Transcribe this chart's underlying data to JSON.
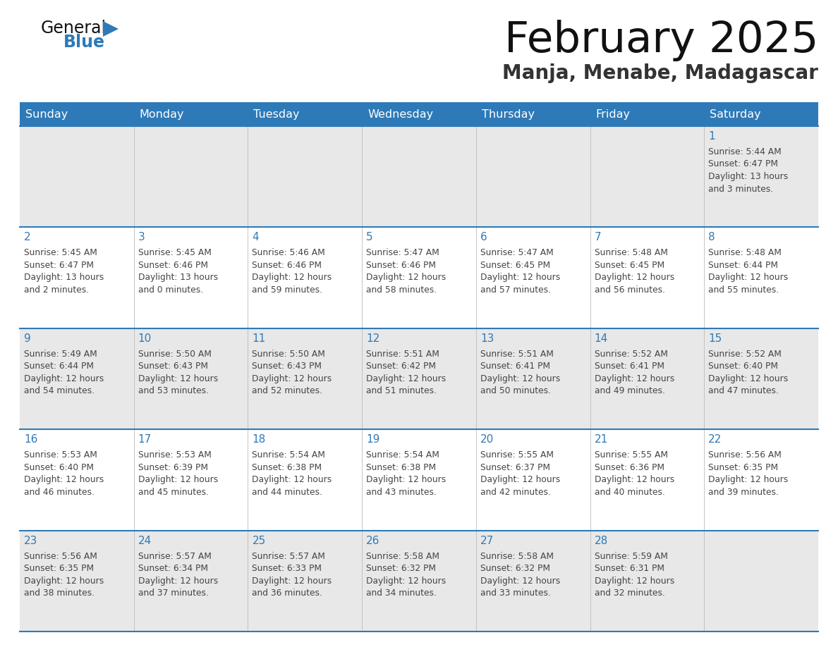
{
  "title": "February 2025",
  "subtitle": "Manja, Menabe, Madagascar",
  "header_bg": "#2E7AB8",
  "header_text_color": "#FFFFFF",
  "cell_bg_light": "#E8E8E8",
  "cell_bg_white": "#FFFFFF",
  "day_number_color": "#2E7AB8",
  "text_color": "#444444",
  "grid_line_color": "#2E7AB8",
  "days_of_week": [
    "Sunday",
    "Monday",
    "Tuesday",
    "Wednesday",
    "Thursday",
    "Friday",
    "Saturday"
  ],
  "calendar_data": [
    [
      null,
      null,
      null,
      null,
      null,
      null,
      {
        "day": 1,
        "sunrise": "5:44 AM",
        "sunset": "6:47 PM",
        "daylight": "13 hours and 3 minutes."
      }
    ],
    [
      {
        "day": 2,
        "sunrise": "5:45 AM",
        "sunset": "6:47 PM",
        "daylight": "13 hours and 2 minutes."
      },
      {
        "day": 3,
        "sunrise": "5:45 AM",
        "sunset": "6:46 PM",
        "daylight": "13 hours and 0 minutes."
      },
      {
        "day": 4,
        "sunrise": "5:46 AM",
        "sunset": "6:46 PM",
        "daylight": "12 hours and 59 minutes."
      },
      {
        "day": 5,
        "sunrise": "5:47 AM",
        "sunset": "6:46 PM",
        "daylight": "12 hours and 58 minutes."
      },
      {
        "day": 6,
        "sunrise": "5:47 AM",
        "sunset": "6:45 PM",
        "daylight": "12 hours and 57 minutes."
      },
      {
        "day": 7,
        "sunrise": "5:48 AM",
        "sunset": "6:45 PM",
        "daylight": "12 hours and 56 minutes."
      },
      {
        "day": 8,
        "sunrise": "5:48 AM",
        "sunset": "6:44 PM",
        "daylight": "12 hours and 55 minutes."
      }
    ],
    [
      {
        "day": 9,
        "sunrise": "5:49 AM",
        "sunset": "6:44 PM",
        "daylight": "12 hours and 54 minutes."
      },
      {
        "day": 10,
        "sunrise": "5:50 AM",
        "sunset": "6:43 PM",
        "daylight": "12 hours and 53 minutes."
      },
      {
        "day": 11,
        "sunrise": "5:50 AM",
        "sunset": "6:43 PM",
        "daylight": "12 hours and 52 minutes."
      },
      {
        "day": 12,
        "sunrise": "5:51 AM",
        "sunset": "6:42 PM",
        "daylight": "12 hours and 51 minutes."
      },
      {
        "day": 13,
        "sunrise": "5:51 AM",
        "sunset": "6:41 PM",
        "daylight": "12 hours and 50 minutes."
      },
      {
        "day": 14,
        "sunrise": "5:52 AM",
        "sunset": "6:41 PM",
        "daylight": "12 hours and 49 minutes."
      },
      {
        "day": 15,
        "sunrise": "5:52 AM",
        "sunset": "6:40 PM",
        "daylight": "12 hours and 47 minutes."
      }
    ],
    [
      {
        "day": 16,
        "sunrise": "5:53 AM",
        "sunset": "6:40 PM",
        "daylight": "12 hours and 46 minutes."
      },
      {
        "day": 17,
        "sunrise": "5:53 AM",
        "sunset": "6:39 PM",
        "daylight": "12 hours and 45 minutes."
      },
      {
        "day": 18,
        "sunrise": "5:54 AM",
        "sunset": "6:38 PM",
        "daylight": "12 hours and 44 minutes."
      },
      {
        "day": 19,
        "sunrise": "5:54 AM",
        "sunset": "6:38 PM",
        "daylight": "12 hours and 43 minutes."
      },
      {
        "day": 20,
        "sunrise": "5:55 AM",
        "sunset": "6:37 PM",
        "daylight": "12 hours and 42 minutes."
      },
      {
        "day": 21,
        "sunrise": "5:55 AM",
        "sunset": "6:36 PM",
        "daylight": "12 hours and 40 minutes."
      },
      {
        "day": 22,
        "sunrise": "5:56 AM",
        "sunset": "6:35 PM",
        "daylight": "12 hours and 39 minutes."
      }
    ],
    [
      {
        "day": 23,
        "sunrise": "5:56 AM",
        "sunset": "6:35 PM",
        "daylight": "12 hours and 38 minutes."
      },
      {
        "day": 24,
        "sunrise": "5:57 AM",
        "sunset": "6:34 PM",
        "daylight": "12 hours and 37 minutes."
      },
      {
        "day": 25,
        "sunrise": "5:57 AM",
        "sunset": "6:33 PM",
        "daylight": "12 hours and 36 minutes."
      },
      {
        "day": 26,
        "sunrise": "5:58 AM",
        "sunset": "6:32 PM",
        "daylight": "12 hours and 34 minutes."
      },
      {
        "day": 27,
        "sunrise": "5:58 AM",
        "sunset": "6:32 PM",
        "daylight": "12 hours and 33 minutes."
      },
      {
        "day": 28,
        "sunrise": "5:59 AM",
        "sunset": "6:31 PM",
        "daylight": "12 hours and 32 minutes."
      },
      null
    ]
  ]
}
